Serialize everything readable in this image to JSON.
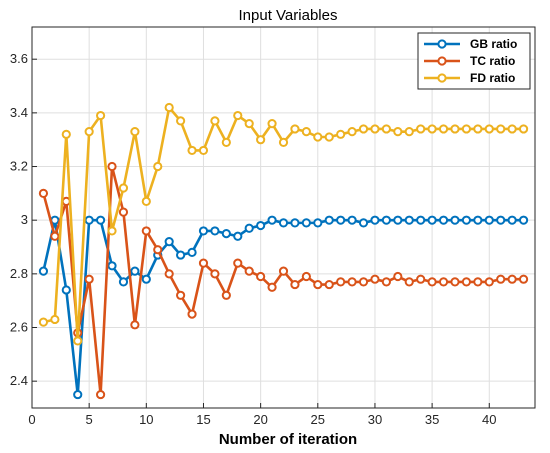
{
  "chart_data": {
    "type": "line",
    "title": "Input Variables",
    "xlabel": "Number of iteration",
    "ylabel": "",
    "xlim": [
      0,
      44
    ],
    "ylim": [
      2.3,
      3.72
    ],
    "xticks": [
      0,
      5,
      10,
      15,
      20,
      25,
      30,
      35,
      40
    ],
    "yticks": [
      2.4,
      2.6,
      2.8,
      3.0,
      3.2,
      3.4,
      3.6
    ],
    "ytick_labels": [
      "2.4",
      "2.6",
      "2.8",
      "3",
      "3.2",
      "3.4",
      "3.6"
    ],
    "grid": true,
    "legend_position": "top-right",
    "x": [
      1,
      2,
      3,
      4,
      5,
      6,
      7,
      8,
      9,
      10,
      11,
      12,
      13,
      14,
      15,
      16,
      17,
      18,
      19,
      20,
      21,
      22,
      23,
      24,
      25,
      26,
      27,
      28,
      29,
      30,
      31,
      32,
      33,
      34,
      35,
      36,
      37,
      38,
      39,
      40,
      41,
      42,
      43
    ],
    "series": [
      {
        "name": "GB ratio",
        "color": "#0072BD",
        "values": [
          2.81,
          3.0,
          2.74,
          2.35,
          3.0,
          3.0,
          2.83,
          2.77,
          2.81,
          2.78,
          2.87,
          2.92,
          2.87,
          2.88,
          2.96,
          2.96,
          2.95,
          2.94,
          2.97,
          2.98,
          3.0,
          2.99,
          2.99,
          2.99,
          2.99,
          3.0,
          3.0,
          3.0,
          2.99,
          3.0,
          3.0,
          3.0,
          3.0,
          3.0,
          3.0,
          3.0,
          3.0,
          3.0,
          3.0,
          3.0,
          3.0,
          3.0,
          3.0
        ]
      },
      {
        "name": "TC ratio",
        "color": "#D95319",
        "values": [
          3.1,
          2.94,
          3.07,
          2.58,
          2.78,
          2.35,
          3.2,
          3.03,
          2.61,
          2.96,
          2.89,
          2.8,
          2.72,
          2.65,
          2.84,
          2.8,
          2.72,
          2.84,
          2.81,
          2.79,
          2.75,
          2.81,
          2.76,
          2.79,
          2.76,
          2.76,
          2.77,
          2.77,
          2.77,
          2.78,
          2.77,
          2.79,
          2.77,
          2.78,
          2.77,
          2.77,
          2.77,
          2.77,
          2.77,
          2.77,
          2.78,
          2.78,
          2.78
        ]
      },
      {
        "name": "FD ratio",
        "color": "#EDB120",
        "values": [
          2.62,
          2.63,
          3.32,
          2.55,
          3.33,
          3.39,
          2.96,
          3.12,
          3.33,
          3.07,
          3.2,
          3.42,
          3.37,
          3.26,
          3.26,
          3.37,
          3.29,
          3.39,
          3.36,
          3.3,
          3.36,
          3.29,
          3.34,
          3.33,
          3.31,
          3.31,
          3.32,
          3.33,
          3.34,
          3.34,
          3.34,
          3.33,
          3.33,
          3.34,
          3.34,
          3.34,
          3.34,
          3.34,
          3.34,
          3.34,
          3.34,
          3.34,
          3.34
        ]
      }
    ]
  }
}
